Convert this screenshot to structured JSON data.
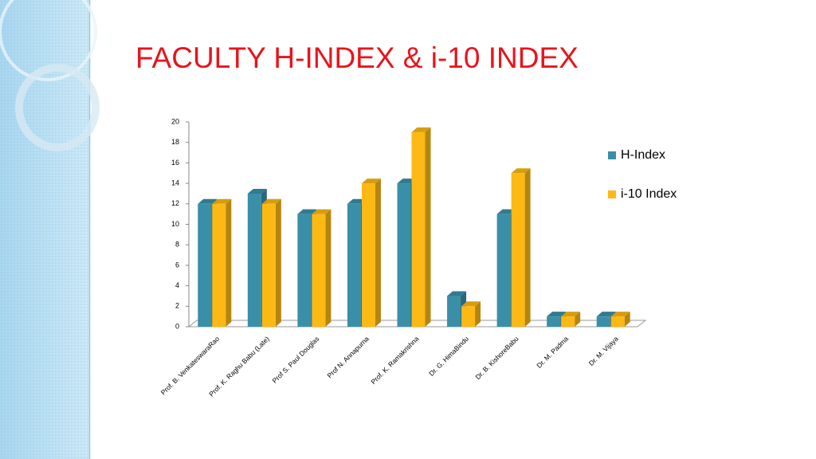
{
  "chart_data": {
    "type": "bar3d",
    "title": "FACULTY H-INDEX & i-10 INDEX",
    "categories": [
      "Prof. B. VenkateswaraRao",
      "Prof. K. Raghu Babu (Late)",
      "Prof S. Paul Douglas",
      "Prof N. Annapurna",
      "Prof. K. Ramakrishna",
      "Dr. G. HimaBindu",
      "Dr. B. KishoreBabu",
      "Dr. M. Padma",
      "Dr. M. Vijaya"
    ],
    "series": [
      {
        "name": "H-Index",
        "color": "#3a8fa8",
        "values": [
          12,
          13,
          11,
          12,
          14,
          3,
          11,
          1,
          1
        ]
      },
      {
        "name": "i-10 Index",
        "color": "#fdb913",
        "values": [
          12,
          12,
          11,
          14,
          19,
          2,
          15,
          1,
          1
        ]
      }
    ],
    "ylim": [
      0,
      20
    ],
    "yticks": [
      0,
      2,
      4,
      6,
      8,
      10,
      12,
      14,
      16,
      18,
      20
    ],
    "legend": "right"
  }
}
